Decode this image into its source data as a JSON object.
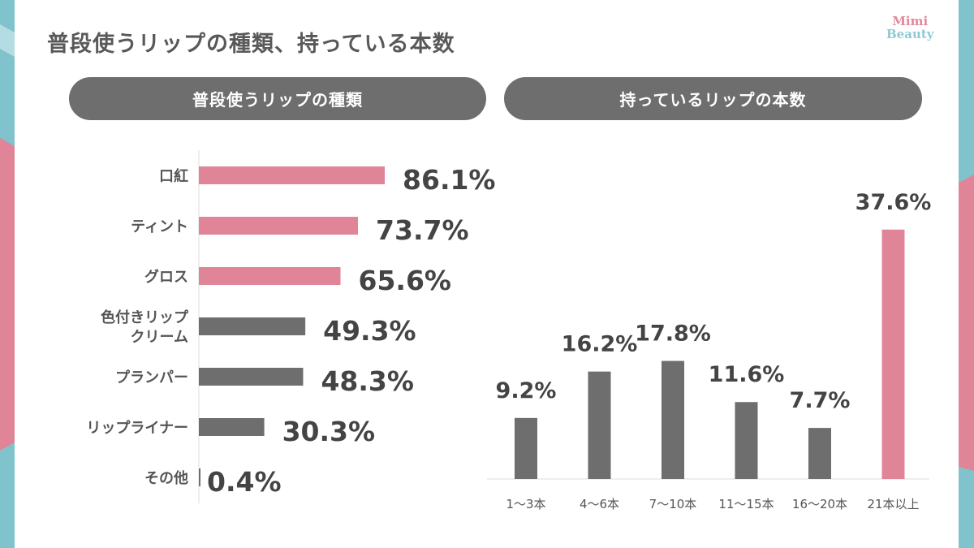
{
  "title": "普段使うリップの種類、持っている本数",
  "logo": {
    "line1": "Mimi",
    "line2": "Beauty"
  },
  "colors": {
    "pink": "#e08597",
    "gray": "#6e6e6e",
    "teal": "#80c3cc"
  },
  "panels": {
    "left": "普段使うリップの種類",
    "right": "持っているリップの本数"
  },
  "chart_data": [
    {
      "type": "bar",
      "orientation": "horizontal",
      "title": "普段使うリップの種類",
      "categories": [
        "口紅",
        "ティント",
        "グロス",
        "色付きリップ\nクリーム",
        "プランパー",
        "リップライナー",
        "その他"
      ],
      "values": [
        86.1,
        73.7,
        65.6,
        49.3,
        48.3,
        30.3,
        0.4
      ],
      "labels": [
        "86.1%",
        "73.7%",
        "65.6%",
        "49.3%",
        "48.3%",
        "30.3%",
        "0.4%"
      ],
      "highlight": [
        true,
        true,
        true,
        false,
        false,
        false,
        false
      ],
      "unit": "%"
    },
    {
      "type": "bar",
      "orientation": "vertical",
      "title": "持っているリップの本数",
      "categories": [
        "1〜3本",
        "4〜6本",
        "7〜10本",
        "11〜15本",
        "16〜20本",
        "21本以上"
      ],
      "values": [
        9.2,
        16.2,
        17.8,
        11.6,
        7.7,
        37.6
      ],
      "labels": [
        "9.2%",
        "16.2%",
        "17.8%",
        "11.6%",
        "7.7%",
        "37.6%"
      ],
      "highlight": [
        false,
        false,
        false,
        false,
        false,
        true
      ],
      "unit": "%"
    }
  ]
}
